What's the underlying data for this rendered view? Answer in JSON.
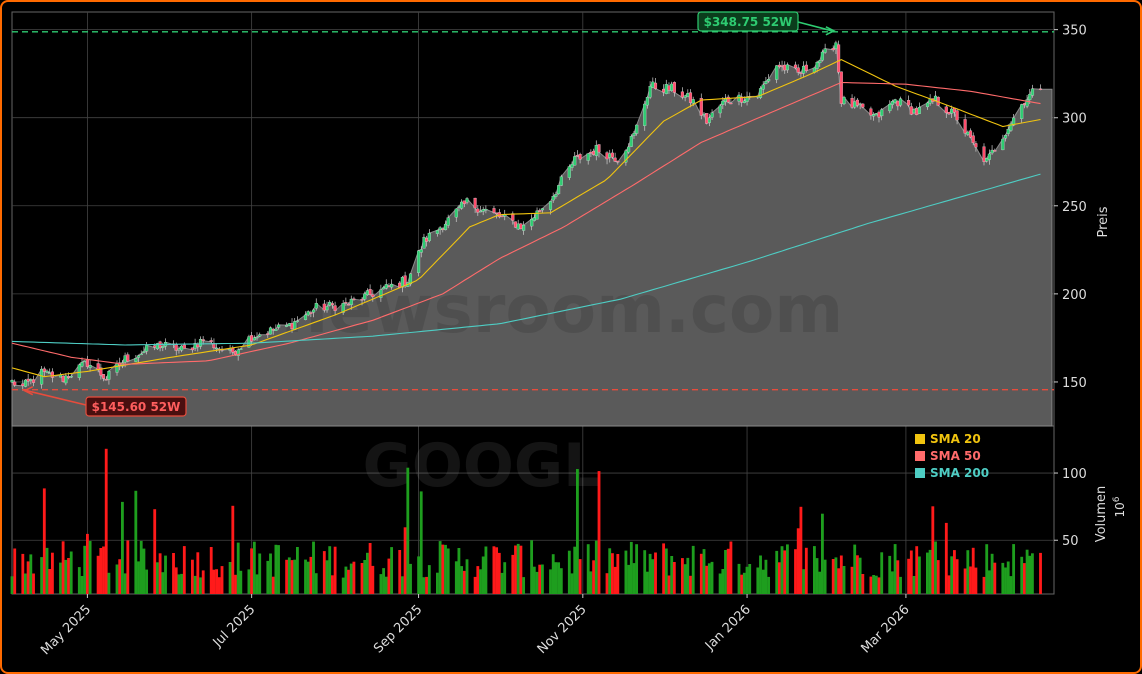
{
  "chart_data": {
    "type": "candlestick",
    "ticker_watermark": "GOOGL",
    "site_watermark": "newsroom.com",
    "price_axis": {
      "label": "Preis",
      "ylim": [
        125,
        360
      ],
      "ticks": [
        150,
        200,
        250,
        300,
        350
      ]
    },
    "volume_axis": {
      "label": "Volumen",
      "multiplier": "10",
      "multiplier_exp": "6",
      "ylim": [
        10,
        135
      ],
      "ticks": [
        50,
        100
      ]
    },
    "x_axis": {
      "range": [
        "2025-04-03",
        "2026-04-25"
      ],
      "ticks": [
        {
          "date": "2025-05-01",
          "label": "May 2025"
        },
        {
          "date": "2025-07-01",
          "label": "Jul 2025"
        },
        {
          "date": "2025-09-01",
          "label": "Sep 2025"
        },
        {
          "date": "2025-11-01",
          "label": "Nov 2025"
        },
        {
          "date": "2026-01-01",
          "label": "Jan 2026"
        },
        {
          "date": "2026-03-01",
          "label": "Mar 2026"
        }
      ]
    },
    "high_52w": {
      "value": 348.75,
      "label": "$348.75 52W",
      "date": "2026-02-03",
      "color": "#2ecc71"
    },
    "low_52w": {
      "value": 145.6,
      "label": "$145.60 52W",
      "date": "2025-04-07",
      "color": "#e74c3c"
    },
    "legend": [
      {
        "name": "SMA 20",
        "color": "#f1c40f"
      },
      {
        "name": "SMA 50",
        "color": "#ff6b6b"
      },
      {
        "name": "SMA 200",
        "color": "#4ecdc4"
      }
    ],
    "up_color": "#2ecc71",
    "down_color": "#ff4d6d",
    "volume_up_color": "#1e9e1e",
    "volume_down_color": "#ff1a1a",
    "close_anchors": [
      [
        "2025-04-03",
        150
      ],
      [
        "2025-04-07",
        147
      ],
      [
        "2025-04-14",
        155
      ],
      [
        "2025-04-22",
        152
      ],
      [
        "2025-05-01",
        161
      ],
      [
        "2025-05-08",
        152
      ],
      [
        "2025-05-15",
        163
      ],
      [
        "2025-05-28",
        171
      ],
      [
        "2025-06-06",
        168
      ],
      [
        "2025-06-13",
        174
      ],
      [
        "2025-06-23",
        166
      ],
      [
        "2025-07-01",
        176
      ],
      [
        "2025-07-15",
        182
      ],
      [
        "2025-07-25",
        192
      ],
      [
        "2025-08-05",
        194
      ],
      [
        "2025-08-18",
        202
      ],
      [
        "2025-08-28",
        208
      ],
      [
        "2025-09-03",
        230
      ],
      [
        "2025-09-12",
        242
      ],
      [
        "2025-09-19",
        252
      ],
      [
        "2025-09-29",
        245
      ],
      [
        "2025-10-10",
        238
      ],
      [
        "2025-10-20",
        254
      ],
      [
        "2025-10-29",
        276
      ],
      [
        "2025-11-06",
        282
      ],
      [
        "2025-11-14",
        277
      ],
      [
        "2025-11-20",
        290
      ],
      [
        "2025-11-26",
        318
      ],
      [
        "2025-12-05",
        316
      ],
      [
        "2025-12-12",
        309
      ],
      [
        "2025-12-17",
        298
      ],
      [
        "2025-12-24",
        310
      ],
      [
        "2026-01-05",
        313
      ],
      [
        "2026-01-12",
        330
      ],
      [
        "2026-01-20",
        325
      ],
      [
        "2026-01-28",
        333
      ],
      [
        "2026-02-03",
        343
      ],
      [
        "2026-02-05",
        310
      ],
      [
        "2026-02-12",
        305
      ],
      [
        "2026-02-18",
        300
      ],
      [
        "2026-02-25",
        310
      ],
      [
        "2026-03-05",
        303
      ],
      [
        "2026-03-12",
        310
      ],
      [
        "2026-03-20",
        300
      ],
      [
        "2026-03-27",
        282
      ],
      [
        "2026-03-31",
        275
      ],
      [
        "2026-04-06",
        290
      ],
      [
        "2026-04-14",
        310
      ],
      [
        "2026-04-20",
        318
      ]
    ],
    "sma20_points": [
      [
        "2025-04-03",
        158
      ],
      [
        "2025-04-15",
        153
      ],
      [
        "2025-05-01",
        156
      ],
      [
        "2025-06-01",
        164
      ],
      [
        "2025-07-01",
        171
      ],
      [
        "2025-08-01",
        188
      ],
      [
        "2025-09-01",
        208
      ],
      [
        "2025-09-20",
        238
      ],
      [
        "2025-10-01",
        245
      ],
      [
        "2025-10-20",
        246
      ],
      [
        "2025-11-10",
        265
      ],
      [
        "2025-12-01",
        298
      ],
      [
        "2025-12-15",
        310
      ],
      [
        "2026-01-05",
        312
      ],
      [
        "2026-01-25",
        325
      ],
      [
        "2026-02-05",
        333
      ],
      [
        "2026-02-25",
        318
      ],
      [
        "2026-03-20",
        305
      ],
      [
        "2026-04-06",
        295
      ],
      [
        "2026-04-20",
        299
      ]
    ],
    "sma50_points": [
      [
        "2025-04-03",
        172
      ],
      [
        "2025-04-25",
        164
      ],
      [
        "2025-05-15",
        160
      ],
      [
        "2025-06-15",
        162
      ],
      [
        "2025-07-15",
        172
      ],
      [
        "2025-08-15",
        185
      ],
      [
        "2025-09-10",
        200
      ],
      [
        "2025-10-01",
        220
      ],
      [
        "2025-10-25",
        238
      ],
      [
        "2025-11-20",
        262
      ],
      [
        "2025-12-15",
        286
      ],
      [
        "2026-01-10",
        303
      ],
      [
        "2026-02-05",
        320
      ],
      [
        "2026-03-01",
        319
      ],
      [
        "2026-03-25",
        315
      ],
      [
        "2026-04-20",
        308
      ]
    ],
    "sma200_points": [
      [
        "2025-04-03",
        173
      ],
      [
        "2025-05-15",
        171
      ],
      [
        "2025-07-01",
        172
      ],
      [
        "2025-08-15",
        176
      ],
      [
        "2025-10-01",
        183
      ],
      [
        "2025-11-15",
        197
      ],
      [
        "2026-01-01",
        218
      ],
      [
        "2026-02-15",
        240
      ],
      [
        "2026-04-20",
        268
      ]
    ]
  }
}
